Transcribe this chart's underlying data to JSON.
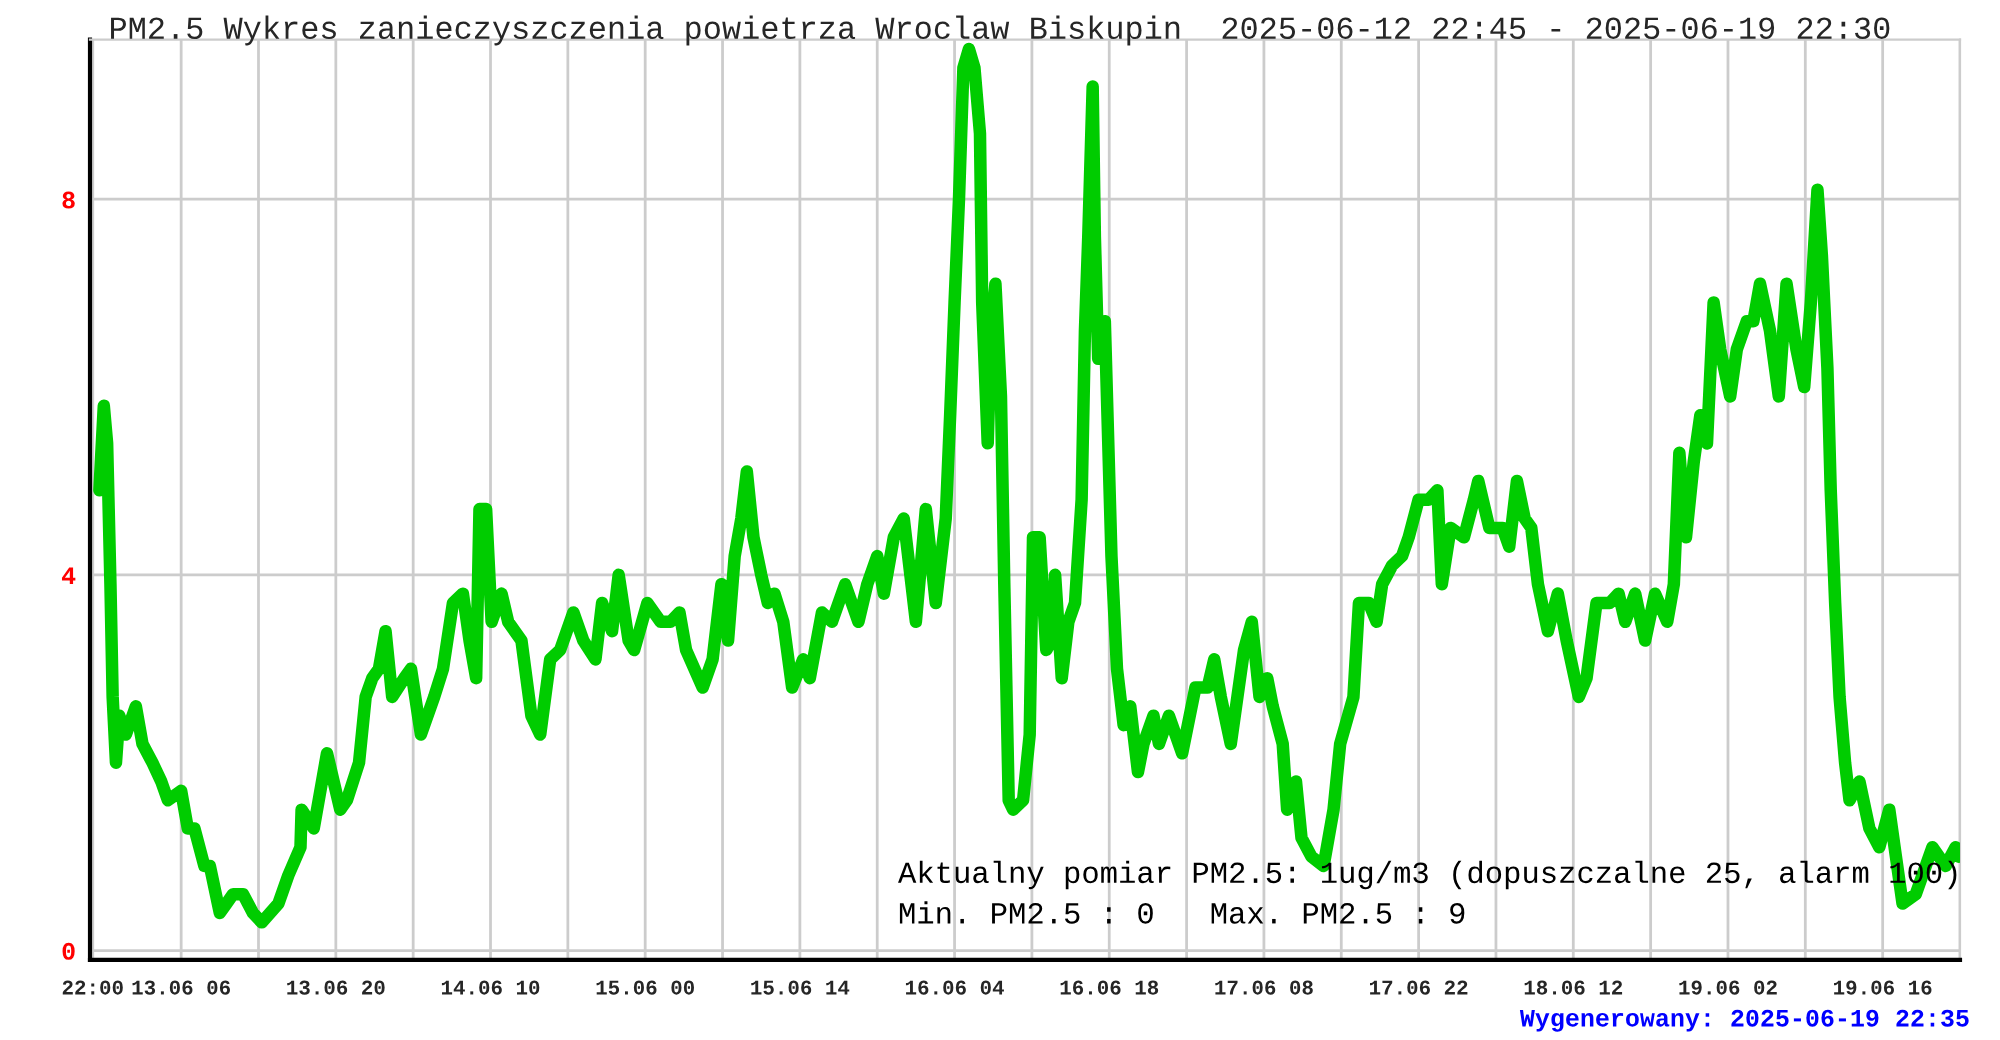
{
  "chart_data": {
    "type": "line",
    "title": "PM2.5 Wykres zanieczyszczenia powietrza Wroclaw Biskupin  2025-06-12 22:45 - 2025-06-19 22:30",
    "annotations": [
      "Aktualny pomiar PM2.5: 1ug/m3 (dopuszczalne 25, alarm 100)",
      "Min. PM2.5 : 0   Max. PM2.5 : 9",
      "Wygenerowany: 2025-06-19 22:35"
    ],
    "series": [
      {
        "color": "#00cc00",
        "x": [
          "2025-06-12T22:36",
          "2025-06-12T23:00",
          "2025-06-12T23:18",
          "2025-06-12T23:36",
          "2025-06-12T23:48",
          "2025-06-13T00:06",
          "2025-06-13T00:24",
          "2025-06-13T01:00",
          "2025-06-13T01:54",
          "2025-06-13T02:30",
          "2025-06-13T03:24",
          "2025-06-13T04:12",
          "2025-06-13T04:48",
          "2025-06-13T06:00",
          "2025-06-13T06:36",
          "2025-06-13T07:12",
          "2025-06-13T08:06",
          "2025-06-13T08:36",
          "2025-06-13T09:30",
          "2025-06-13T10:06",
          "2025-06-13T10:42",
          "2025-06-13T11:36",
          "2025-06-13T12:30",
          "2025-06-13T13:18",
          "2025-06-13T14:48",
          "2025-06-13T15:42",
          "2025-06-13T16:48",
          "2025-06-13T16:54",
          "2025-06-13T18:00",
          "2025-06-13T19:12",
          "2025-06-13T20:24",
          "2025-06-13T21:00",
          "2025-06-13T22:06",
          "2025-06-13T22:42",
          "2025-06-13T23:18",
          "2025-06-13T23:54",
          "2025-06-14T00:30",
          "2025-06-14T01:06",
          "2025-06-14T02:12",
          "2025-06-14T02:48",
          "2025-06-14T03:42",
          "2025-06-14T04:54",
          "2025-06-14T05:42",
          "2025-06-14T06:36",
          "2025-06-14T07:30",
          "2025-06-14T08:06",
          "2025-06-14T08:42",
          "2025-06-14T09:00",
          "2025-06-14T09:36",
          "2025-06-14T10:06",
          "2025-06-14T11:00",
          "2025-06-14T11:36",
          "2025-06-14T12:48",
          "2025-06-14T13:42",
          "2025-06-14T14:30",
          "2025-06-14T15:24",
          "2025-06-14T16:18",
          "2025-06-14T17:30",
          "2025-06-14T18:24",
          "2025-06-14T19:30",
          "2025-06-14T20:06",
          "2025-06-14T21:00",
          "2025-06-14T21:36",
          "2025-06-14T22:30",
          "2025-06-14T23:00",
          "2025-06-15T00:12",
          "2025-06-15T01:24",
          "2025-06-15T02:18",
          "2025-06-15T03:06",
          "2025-06-15T03:42",
          "2025-06-15T05:12",
          "2025-06-15T06:06",
          "2025-06-15T06:54",
          "2025-06-15T07:30",
          "2025-06-15T08:06",
          "2025-06-15T08:42",
          "2025-06-15T09:12",
          "2025-06-15T09:48",
          "2025-06-15T10:30",
          "2025-06-15T11:06",
          "2025-06-15T11:42",
          "2025-06-15T12:30",
          "2025-06-15T13:18",
          "2025-06-15T14:18",
          "2025-06-15T14:54",
          "2025-06-15T16:00",
          "2025-06-15T16:54",
          "2025-06-15T18:06",
          "2025-06-15T19:18",
          "2025-06-15T20:06",
          "2025-06-15T21:00",
          "2025-06-15T21:36",
          "2025-06-15T22:30",
          "2025-06-15T23:24",
          "2025-06-16T00:30",
          "2025-06-16T01:24",
          "2025-06-16T02:18",
          "2025-06-16T03:12",
          "2025-06-16T03:36",
          "2025-06-16T04:00",
          "2025-06-16T04:24",
          "2025-06-16T04:48",
          "2025-06-16T05:18",
          "2025-06-16T05:48",
          "2025-06-16T06:18",
          "2025-06-16T06:30",
          "2025-06-16T07:00",
          "2025-06-16T07:18",
          "2025-06-16T07:42",
          "2025-06-16T08:12",
          "2025-06-16T08:30",
          "2025-06-16T08:54",
          "2025-06-16T09:18",
          "2025-06-16T10:12",
          "2025-06-16T10:48",
          "2025-06-16T11:06",
          "2025-06-16T11:42",
          "2025-06-16T12:18",
          "2025-06-16T12:48",
          "2025-06-16T13:06",
          "2025-06-16T13:42",
          "2025-06-16T14:18",
          "2025-06-16T14:54",
          "2025-06-16T15:30",
          "2025-06-16T15:48",
          "2025-06-16T16:06",
          "2025-06-16T16:30",
          "2025-06-16T16:42",
          "2025-06-16T17:00",
          "2025-06-16T17:36",
          "2025-06-16T18:12",
          "2025-06-16T18:42",
          "2025-06-16T19:18",
          "2025-06-16T19:54",
          "2025-06-16T20:36",
          "2025-06-16T21:06",
          "2025-06-16T22:00",
          "2025-06-16T22:30",
          "2025-06-16T23:24",
          "2025-06-17T00:36",
          "2025-06-17T01:48",
          "2025-06-17T02:54",
          "2025-06-17T03:30",
          "2025-06-17T04:06",
          "2025-06-17T05:00",
          "2025-06-17T05:36",
          "2025-06-17T06:12",
          "2025-06-17T06:54",
          "2025-06-17T07:36",
          "2025-06-17T08:18",
          "2025-06-17T08:48",
          "2025-06-17T09:42",
          "2025-06-17T10:06",
          "2025-06-17T10:54",
          "2025-06-17T11:24",
          "2025-06-17T12:18",
          "2025-06-17T13:24",
          "2025-06-17T14:18",
          "2025-06-17T14:54",
          "2025-06-17T16:06",
          "2025-06-17T16:36",
          "2025-06-17T17:30",
          "2025-06-17T18:12",
          "2025-06-17T18:42",
          "2025-06-17T19:36",
          "2025-06-17T20:30",
          "2025-06-17T21:06",
          "2025-06-17T22:00",
          "2025-06-17T22:54",
          "2025-06-17T23:42",
          "2025-06-18T00:06",
          "2025-06-18T00:54",
          "2025-06-18T02:06",
          "2025-06-18T03:00",
          "2025-06-18T03:24",
          "2025-06-18T04:24",
          "2025-06-18T05:36",
          "2025-06-18T06:12",
          "2025-06-18T06:54",
          "2025-06-18T07:36",
          "2025-06-18T08:12",
          "2025-06-18T08:48",
          "2025-06-18T09:42",
          "2025-06-18T10:36",
          "2025-06-18T11:24",
          "2025-06-18T12:30",
          "2025-06-18T13:12",
          "2025-06-18T14:06",
          "2025-06-18T15:18",
          "2025-06-18T16:06",
          "2025-06-18T16:42",
          "2025-06-18T17:36",
          "2025-06-18T18:30",
          "2025-06-18T19:24",
          "2025-06-18T20:30",
          "2025-06-18T21:06",
          "2025-06-18T21:36",
          "2025-06-18T22:12",
          "2025-06-18T22:54",
          "2025-06-18T23:30",
          "2025-06-19T00:06",
          "2025-06-19T00:42",
          "2025-06-19T01:18",
          "2025-06-19T02:12",
          "2025-06-19T02:48",
          "2025-06-19T03:42",
          "2025-06-19T04:18",
          "2025-06-19T04:54",
          "2025-06-19T05:48",
          "2025-06-19T06:36",
          "2025-06-19T07:18",
          "2025-06-19T08:12",
          "2025-06-19T08:54",
          "2025-06-19T09:30",
          "2025-06-19T10:06",
          "2025-06-19T10:30",
          "2025-06-19T11:00",
          "2025-06-19T11:18",
          "2025-06-19T11:42",
          "2025-06-19T12:06",
          "2025-06-19T12:36",
          "2025-06-19T13:00",
          "2025-06-19T13:54",
          "2025-06-19T14:48",
          "2025-06-19T15:42",
          "2025-06-19T16:36",
          "2025-06-19T17:12",
          "2025-06-19T17:48",
          "2025-06-19T19:00",
          "2025-06-19T19:36",
          "2025-06-19T20:30",
          "2025-06-19T21:42",
          "2025-06-19T22:36",
          "2025-06-19T22:54"
        ],
        "values": [
          4.9,
          5.8,
          5.4,
          3.9,
          2.7,
          2,
          2.5,
          2.3,
          2.6,
          2.2,
          2,
          1.8,
          1.6,
          1.7,
          1.3,
          1.3,
          0.9,
          0.9,
          0.4,
          0.5,
          0.6,
          0.6,
          0.4,
          0.3,
          0.5,
          0.8,
          1.1,
          1.5,
          1.3,
          2.1,
          1.5,
          1.6,
          2,
          2.7,
          2.9,
          3,
          3.4,
          2.7,
          2.9,
          3,
          2.3,
          2.7,
          3,
          3.7,
          3.8,
          3.3,
          2.9,
          4.7,
          4.7,
          3.5,
          3.8,
          3.5,
          3.3,
          2.5,
          2.3,
          3.1,
          3.2,
          3.6,
          3.3,
          3.1,
          3.7,
          3.4,
          4,
          3.3,
          3.2,
          3.7,
          3.5,
          3.5,
          3.6,
          3.2,
          2.8,
          3.1,
          3.9,
          3.3,
          4.2,
          4.6,
          5.1,
          4.4,
          4,
          3.7,
          3.8,
          3.5,
          2.8,
          3.1,
          2.9,
          3.6,
          3.5,
          3.9,
          3.5,
          3.9,
          4.2,
          3.8,
          4.4,
          4.6,
          3.5,
          4.7,
          3.7,
          4.6,
          5.7,
          6.9,
          8,
          9.4,
          9.6,
          9.4,
          8.7,
          6.9,
          5.4,
          6.6,
          7.1,
          5.9,
          3.9,
          1.6,
          1.5,
          1.6,
          2.3,
          4.4,
          4.4,
          3.2,
          3.3,
          4,
          2.9,
          3.5,
          3.7,
          4.8,
          6.6,
          7.6,
          9.2,
          7.6,
          6.3,
          6.7,
          4.2,
          3,
          2.4,
          2.6,
          1.9,
          2.2,
          2.5,
          2.2,
          2.5,
          2.1,
          2.8,
          2.8,
          3.1,
          2.7,
          2.2,
          2.7,
          3.2,
          3.5,
          2.7,
          2.9,
          2.6,
          2.2,
          1.5,
          1.8,
          1.2,
          1,
          0.9,
          1.5,
          2.2,
          2.7,
          3.7,
          3.7,
          3.5,
          3.9,
          4.1,
          4.2,
          4.4,
          4.8,
          4.8,
          4.9,
          3.9,
          4.5,
          4.4,
          4.8,
          5,
          4.5,
          4.5,
          4.3,
          5,
          4.6,
          4.5,
          3.9,
          3.4,
          3.8,
          3.3,
          2.7,
          2.9,
          3.7,
          3.7,
          3.8,
          3.5,
          3.8,
          3.3,
          3.8,
          3.5,
          3.9,
          5.3,
          4.4,
          5.2,
          5.7,
          5.4,
          6.9,
          6.4,
          5.9,
          6.4,
          6.7,
          6.7,
          7.1,
          6.6,
          5.9,
          7.1,
          6.4,
          6,
          6.9,
          8.1,
          7.4,
          6.2,
          4.9,
          3.7,
          2.7,
          2,
          1.6,
          1.8,
          1.3,
          1.1,
          1.5,
          1,
          0.5,
          0.6,
          0.8,
          1.1,
          0.9,
          1.1,
          1
        ]
      }
    ],
    "xlim": [
      "2025-06-12T21:45",
      "2025-06-19T23:00"
    ],
    "ylim": [
      -0.1,
      9.7
    ],
    "xticks": [
      {
        "value": "2025-06-12T22:00",
        "label": "22:00"
      },
      {
        "value": "2025-06-13T06:00",
        "label": "13.06 06"
      },
      {
        "value": "2025-06-13T13:00",
        "label": null
      },
      {
        "value": "2025-06-13T20:00",
        "label": "13.06 20"
      },
      {
        "value": "2025-06-14T03:00",
        "label": null
      },
      {
        "value": "2025-06-14T10:00",
        "label": "14.06 10"
      },
      {
        "value": "2025-06-14T17:00",
        "label": null
      },
      {
        "value": "2025-06-15T00:00",
        "label": "15.06 00"
      },
      {
        "value": "2025-06-15T07:00",
        "label": null
      },
      {
        "value": "2025-06-15T14:00",
        "label": "15.06 14"
      },
      {
        "value": "2025-06-15T21:00",
        "label": null
      },
      {
        "value": "2025-06-16T04:00",
        "label": "16.06 04"
      },
      {
        "value": "2025-06-16T11:00",
        "label": null
      },
      {
        "value": "2025-06-16T18:00",
        "label": "16.06 18"
      },
      {
        "value": "2025-06-17T01:00",
        "label": null
      },
      {
        "value": "2025-06-17T08:00",
        "label": "17.06 08"
      },
      {
        "value": "2025-06-17T15:00",
        "label": null
      },
      {
        "value": "2025-06-17T22:00",
        "label": "17.06 22"
      },
      {
        "value": "2025-06-18T05:00",
        "label": null
      },
      {
        "value": "2025-06-18T12:00",
        "label": "18.06 12"
      },
      {
        "value": "2025-06-18T19:00",
        "label": null
      },
      {
        "value": "2025-06-19T02:00",
        "label": "19.06 02"
      },
      {
        "value": "2025-06-19T09:00",
        "label": null
      },
      {
        "value": "2025-06-19T16:00",
        "label": "19.06 16"
      },
      {
        "value": "2025-06-19T23:00",
        "label": null
      }
    ],
    "yticks": [
      0,
      4,
      8
    ],
    "grid": true,
    "legend": false,
    "marker": "none",
    "line_style": "solid"
  }
}
